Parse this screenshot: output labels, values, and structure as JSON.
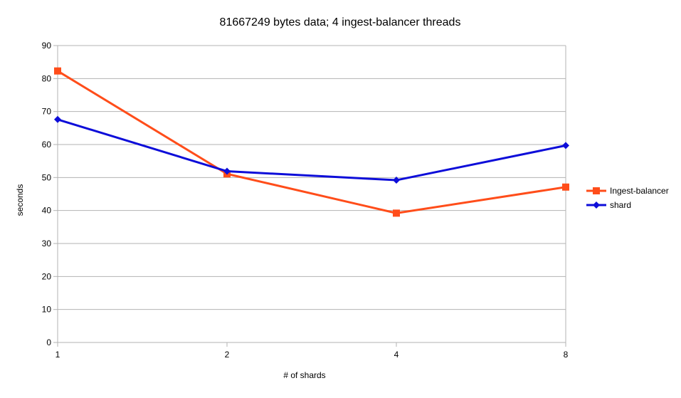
{
  "chart_data": {
    "type": "line",
    "title": "81667249 bytes data; 4 ingest-balancer threads",
    "xlabel": "# of shards",
    "ylabel": "seconds",
    "categories": [
      "1",
      "2",
      "4",
      "8"
    ],
    "ylim": [
      0,
      90
    ],
    "yticks": [
      0,
      10,
      20,
      30,
      40,
      50,
      60,
      70,
      80,
      90
    ],
    "grid": true,
    "legend_position": "right",
    "series": [
      {
        "name": "Ingest-balancer",
        "color": "#ff4d1a",
        "marker": "square",
        "values": [
          82.3,
          51.1,
          39.2,
          47.1
        ]
      },
      {
        "name": "shard",
        "color": "#0d0dd9",
        "marker": "diamond",
        "values": [
          67.6,
          51.9,
          49.2,
          59.7
        ]
      }
    ]
  }
}
